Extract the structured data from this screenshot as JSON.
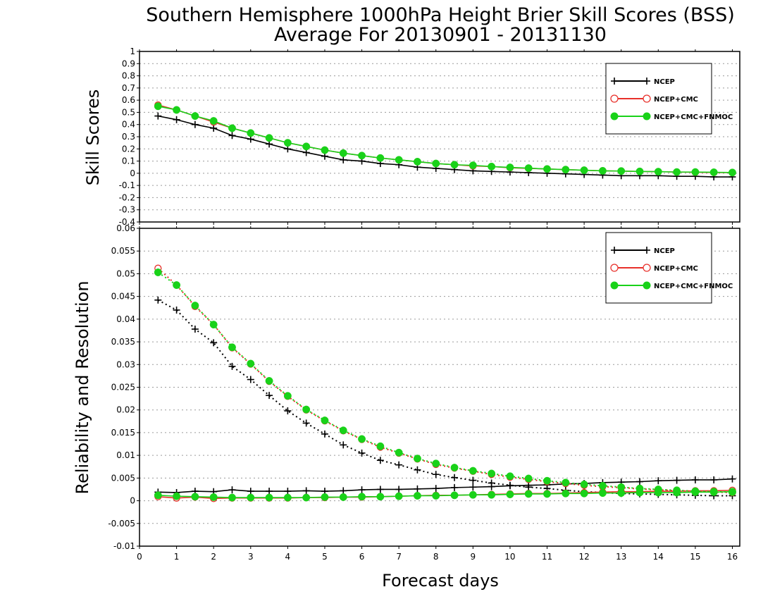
{
  "title": [
    "Southern Hemisphere 1000hPa Height Brier Skill Scores (BSS)",
    "Average For 20130901 - 20131130"
  ],
  "colors": {
    "NCEP": "#000000",
    "NCEP+CMC": "#e8312b",
    "NCEP+CMC+FNMOC": "#19d219"
  },
  "chart_data": [
    {
      "type": "line",
      "panel": "top",
      "title": "Southern Hemisphere 1000hPa Height Brier Skill Scores (BSS)",
      "xlabel": "",
      "ylabel": "Skill Scores",
      "xlim": [
        0,
        16.2
      ],
      "ylim": [
        -0.4,
        1
      ],
      "y_ticks": [
        "1",
        "0.9",
        "0.8",
        "0.7",
        "0.6",
        "0.5",
        "0.4",
        "0.3",
        "0.2",
        "0.1",
        "0",
        "-0.1",
        "-0.2",
        "-0.3",
        "-0.4"
      ],
      "grid": true,
      "legend": "top-right",
      "x": [
        0.5,
        1,
        1.5,
        2,
        2.5,
        3,
        3.5,
        4,
        4.5,
        5,
        5.5,
        6,
        6.5,
        7,
        7.5,
        8,
        8.5,
        9,
        9.5,
        10,
        10.5,
        11,
        11.5,
        12,
        12.5,
        13,
        13.5,
        14,
        14.5,
        15,
        15.5,
        16
      ],
      "series": [
        {
          "name": "NCEP",
          "marker": "plus",
          "values": [
            0.47,
            0.44,
            0.4,
            0.37,
            0.31,
            0.28,
            0.24,
            0.2,
            0.17,
            0.14,
            0.11,
            0.1,
            0.08,
            0.07,
            0.05,
            0.04,
            0.03,
            0.02,
            0.015,
            0.01,
            0.005,
            0.0,
            -0.005,
            -0.01,
            -0.015,
            -0.02,
            -0.02,
            -0.02,
            -0.025,
            -0.025,
            -0.03,
            -0.03
          ]
        },
        {
          "name": "NCEP+CMC",
          "marker": "circle-open",
          "values": [
            0.56,
            0.52,
            0.47,
            0.42,
            0.37,
            0.33,
            0.29,
            0.25,
            0.22,
            0.19,
            0.165,
            0.145,
            0.125,
            0.11,
            0.095,
            0.08,
            0.07,
            0.06,
            0.055,
            0.045,
            0.04,
            0.035,
            0.03,
            0.025,
            0.02,
            0.018,
            0.015,
            0.013,
            0.01,
            0.008,
            0.006,
            0.005
          ]
        },
        {
          "name": "NCEP+CMC+FNMOC",
          "marker": "circle-filled",
          "values": [
            0.55,
            0.52,
            0.47,
            0.43,
            0.37,
            0.33,
            0.29,
            0.25,
            0.22,
            0.19,
            0.165,
            0.145,
            0.125,
            0.11,
            0.095,
            0.08,
            0.07,
            0.065,
            0.055,
            0.048,
            0.042,
            0.035,
            0.03,
            0.025,
            0.02,
            0.018,
            0.015,
            0.013,
            0.01,
            0.01,
            0.008,
            0.006
          ]
        }
      ]
    },
    {
      "type": "line",
      "panel": "bottom",
      "xlabel": "Forecast days",
      "ylabel": "Reliability and Resolution",
      "xlim": [
        0,
        16.2
      ],
      "ylim": [
        -0.01,
        0.06
      ],
      "x_ticks": [
        "0",
        "1",
        "2",
        "3",
        "4",
        "5",
        "6",
        "7",
        "8",
        "9",
        "10",
        "11",
        "12",
        "13",
        "14",
        "15",
        "16"
      ],
      "y_ticks": [
        "0.06",
        "0.055",
        "0.05",
        "0.045",
        "0.04",
        "0.035",
        "0.03",
        "0.025",
        "0.02",
        "0.015",
        "0.01",
        "0.005",
        "0",
        "-0.005",
        "-0.01"
      ],
      "grid": true,
      "legend": "top-right",
      "x": [
        0.5,
        1,
        1.5,
        2,
        2.5,
        3,
        3.5,
        4,
        4.5,
        5,
        5.5,
        6,
        6.5,
        7,
        7.5,
        8,
        8.5,
        9,
        9.5,
        10,
        10.5,
        11,
        11.5,
        12,
        12.5,
        13,
        13.5,
        14,
        14.5,
        15,
        15.5,
        16
      ],
      "series": [
        {
          "name": "NCEP",
          "metric": "resolution",
          "marker": "plus",
          "line": "dotted",
          "values": [
            0.0442,
            0.042,
            0.0378,
            0.0348,
            0.0296,
            0.0267,
            0.0232,
            0.0198,
            0.0171,
            0.0147,
            0.0123,
            0.0105,
            0.0089,
            0.0079,
            0.0068,
            0.0058,
            0.0051,
            0.0045,
            0.0039,
            0.0034,
            0.003,
            0.0027,
            0.0023,
            0.002,
            0.0018,
            0.0016,
            0.0015,
            0.0014,
            0.0013,
            0.0012,
            0.0011,
            0.0011
          ]
        },
        {
          "name": "NCEP",
          "metric": "reliability",
          "marker": "plus",
          "line": "solid",
          "values": [
            0.0019,
            0.0018,
            0.0021,
            0.002,
            0.0024,
            0.0021,
            0.0021,
            0.0021,
            0.0022,
            0.0021,
            0.0022,
            0.0024,
            0.0025,
            0.0025,
            0.0026,
            0.0027,
            0.0029,
            0.003,
            0.0031,
            0.0033,
            0.0034,
            0.0035,
            0.0037,
            0.0038,
            0.004,
            0.0041,
            0.0042,
            0.0044,
            0.0045,
            0.0046,
            0.0046,
            0.0048
          ]
        },
        {
          "name": "NCEP+CMC",
          "metric": "resolution",
          "marker": "circle-open",
          "line": "dotted",
          "values": [
            0.0512,
            0.0475,
            0.0428,
            0.0388,
            0.0337,
            0.0301,
            0.0263,
            0.023,
            0.02,
            0.0176,
            0.0154,
            0.0135,
            0.0118,
            0.0105,
            0.0092,
            0.008,
            0.0072,
            0.0065,
            0.0058,
            0.0052,
            0.0047,
            0.0042,
            0.0038,
            0.0034,
            0.0031,
            0.0029,
            0.0026,
            0.0024,
            0.0022,
            0.0021,
            0.0019,
            0.0018
          ]
        },
        {
          "name": "NCEP+CMC",
          "metric": "reliability",
          "marker": "circle-open",
          "line": "solid",
          "values": [
            0.0009,
            0.0006,
            0.0008,
            0.0005,
            0.0006,
            0.0006,
            0.0006,
            0.0006,
            0.0007,
            0.0007,
            0.0008,
            0.0008,
            0.0009,
            0.001,
            0.0011,
            0.0012,
            0.0012,
            0.0013,
            0.0014,
            0.0015,
            0.0016,
            0.0016,
            0.0017,
            0.0018,
            0.0019,
            0.002,
            0.002,
            0.0021,
            0.0021,
            0.0022,
            0.0022,
            0.0023
          ]
        },
        {
          "name": "NCEP+CMC+FNMOC",
          "metric": "resolution",
          "marker": "circle-filled",
          "line": "dotted",
          "values": [
            0.0503,
            0.0475,
            0.043,
            0.0388,
            0.0338,
            0.0302,
            0.0264,
            0.0231,
            0.0201,
            0.0177,
            0.0155,
            0.0136,
            0.012,
            0.0106,
            0.0093,
            0.0082,
            0.0073,
            0.0066,
            0.006,
            0.0054,
            0.0049,
            0.0044,
            0.004,
            0.0036,
            0.0033,
            0.003,
            0.0027,
            0.0025,
            0.0023,
            0.0021,
            0.002,
            0.0019
          ]
        },
        {
          "name": "NCEP+CMC+FNMOC",
          "metric": "reliability",
          "marker": "circle-filled",
          "line": "solid",
          "values": [
            0.0012,
            0.001,
            0.0009,
            0.0008,
            0.0007,
            0.0007,
            0.0007,
            0.0007,
            0.0007,
            0.0008,
            0.0008,
            0.0009,
            0.0009,
            0.001,
            0.0011,
            0.0011,
            0.0012,
            0.0013,
            0.0013,
            0.0014,
            0.0015,
            0.0015,
            0.0016,
            0.0016,
            0.0017,
            0.0017,
            0.0018,
            0.0018,
            0.0018,
            0.0019,
            0.0019,
            0.002
          ]
        }
      ]
    }
  ],
  "legend": [
    "NCEP",
    "NCEP+CMC",
    "NCEP+CMC+FNMOC"
  ]
}
